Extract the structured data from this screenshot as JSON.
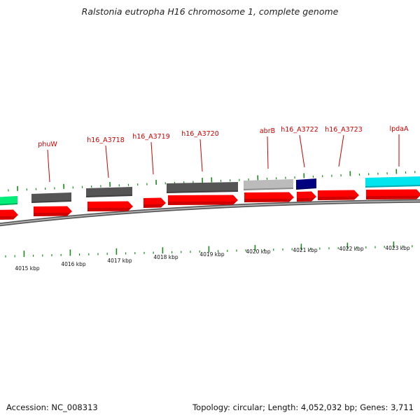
{
  "header": {
    "title": "Ralstonia eutropha H16 chromosome 1, complete genome"
  },
  "footer": {
    "accession": "Accession: NC_008313",
    "summary": "Topology: circular; Length: 4,052,032 bp; Genes: 3,711"
  },
  "colors": {
    "label": "#cc0000",
    "tick": "#1a8a1a",
    "cds": "#ff0000",
    "gene_dark": "#555555",
    "gene_light": "#bbbbbb",
    "gene_navy": "#000080",
    "gene_cyan": "#00e5ee",
    "gene_green": "#00ee77",
    "backbone": "#777777"
  },
  "gene_labels": [
    "phuW",
    "h16_A3718",
    "h16_A3719",
    "h16_A3720",
    "abrB",
    "h16_A3722",
    "h16_A3723",
    "lpdaA"
  ],
  "kbp_labels": [
    "4015 kbp",
    "4016 kbp",
    "4017 kbp",
    "4018 kbp",
    "4019 kbp",
    "4020 kbp",
    "4021 kbp",
    "4022 kbp",
    "4023 kbp"
  ]
}
